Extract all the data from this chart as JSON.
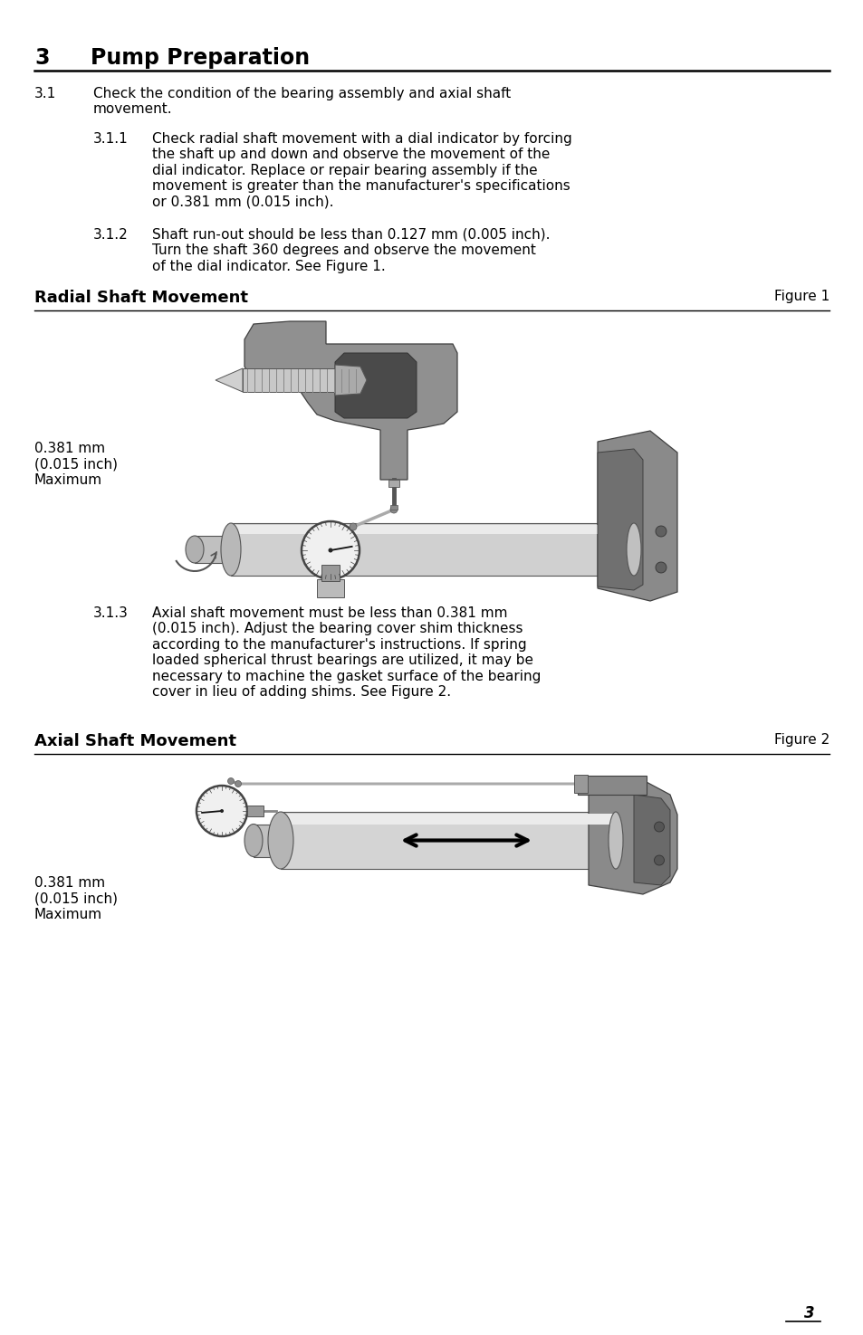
{
  "title_num": "3",
  "title_text": "Pump Preparation",
  "bg_color": "#ffffff",
  "text_color": "#000000",
  "section_31_num": "3.1",
  "section_31_text": "Check the condition of the bearing assembly and axial shaft\nmovement.",
  "section_311_num": "3.1.1",
  "section_311_text": "Check radial shaft movement with a dial indicator by forcing\nthe shaft up and down and observe the movement of the\ndial indicator. Replace or repair bearing assembly if the\nmovement is greater than the manufacturer's specifications\nor 0.381 mm (0.015 inch).",
  "section_312_num": "3.1.2",
  "section_312_text": "Shaft run-out should be less than 0.127 mm (0.005 inch).\nTurn the shaft 360 degrees and observe the movement\nof the dial indicator. See Figure 1.",
  "fig1_title": "Radial Shaft Movement",
  "fig1_label": "Figure 1",
  "fig1_annotation": "0.381 mm\n(0.015 inch)\nMaximum",
  "section_313_num": "3.1.3",
  "section_313_text": "Axial shaft movement must be less than 0.381 mm\n(0.015 inch). Adjust the bearing cover shim thickness\naccording to the manufacturer's instructions. If spring\nloaded spherical thrust bearings are utilized, it may be\nnecessary to machine the gasket surface of the bearing\ncover in lieu of adding shims. See Figure 2.",
  "fig2_title": "Axial Shaft Movement",
  "fig2_label": "Figure 2",
  "fig2_annotation": "0.381 mm\n(0.015 inch)\nMaximum",
  "page_num": "3",
  "line_color": "#000000",
  "gray_very_light": "#e8e8e8",
  "gray_light": "#c8c8c8",
  "gray_mid": "#a0a0a0",
  "gray_dark": "#707070",
  "gray_darker": "#555555"
}
